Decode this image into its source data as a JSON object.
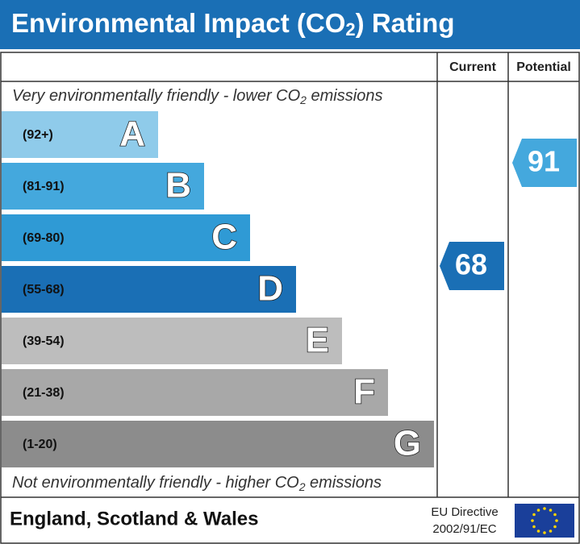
{
  "header": {
    "title": "Environmental Impact (CO",
    "title_sub": "2",
    "title_end": ") Rating"
  },
  "columns": [
    "Current",
    "Potential"
  ],
  "top_note": {
    "text": "Very environmentally friendly - lower CO",
    "sub": "2",
    "end": " emissions"
  },
  "bottom_note": {
    "text": "Not environmentally friendly - higher CO",
    "sub": "2",
    "end": " emissions"
  },
  "bands": [
    {
      "range": "(92+)",
      "letter": "A",
      "color": "#8fcbea"
    },
    {
      "range": "(81-91)",
      "letter": "B",
      "color": "#44a8dd"
    },
    {
      "range": "(69-80)",
      "letter": "C",
      "color": "#2f9ad5"
    },
    {
      "range": "(55-68)",
      "letter": "D",
      "color": "#1a6fb5"
    },
    {
      "range": "(39-54)",
      "letter": "E",
      "color": "#bdbdbd"
    },
    {
      "range": "(21-38)",
      "letter": "F",
      "color": "#a8a8a8"
    },
    {
      "range": "(1-20)",
      "letter": "G",
      "color": "#8c8c8c"
    }
  ],
  "current": "68",
  "potential": "91",
  "footer": {
    "region": "England, Scotland & Wales",
    "directive_line1": "EU Directive",
    "directive_line2": "2002/91/EC"
  }
}
